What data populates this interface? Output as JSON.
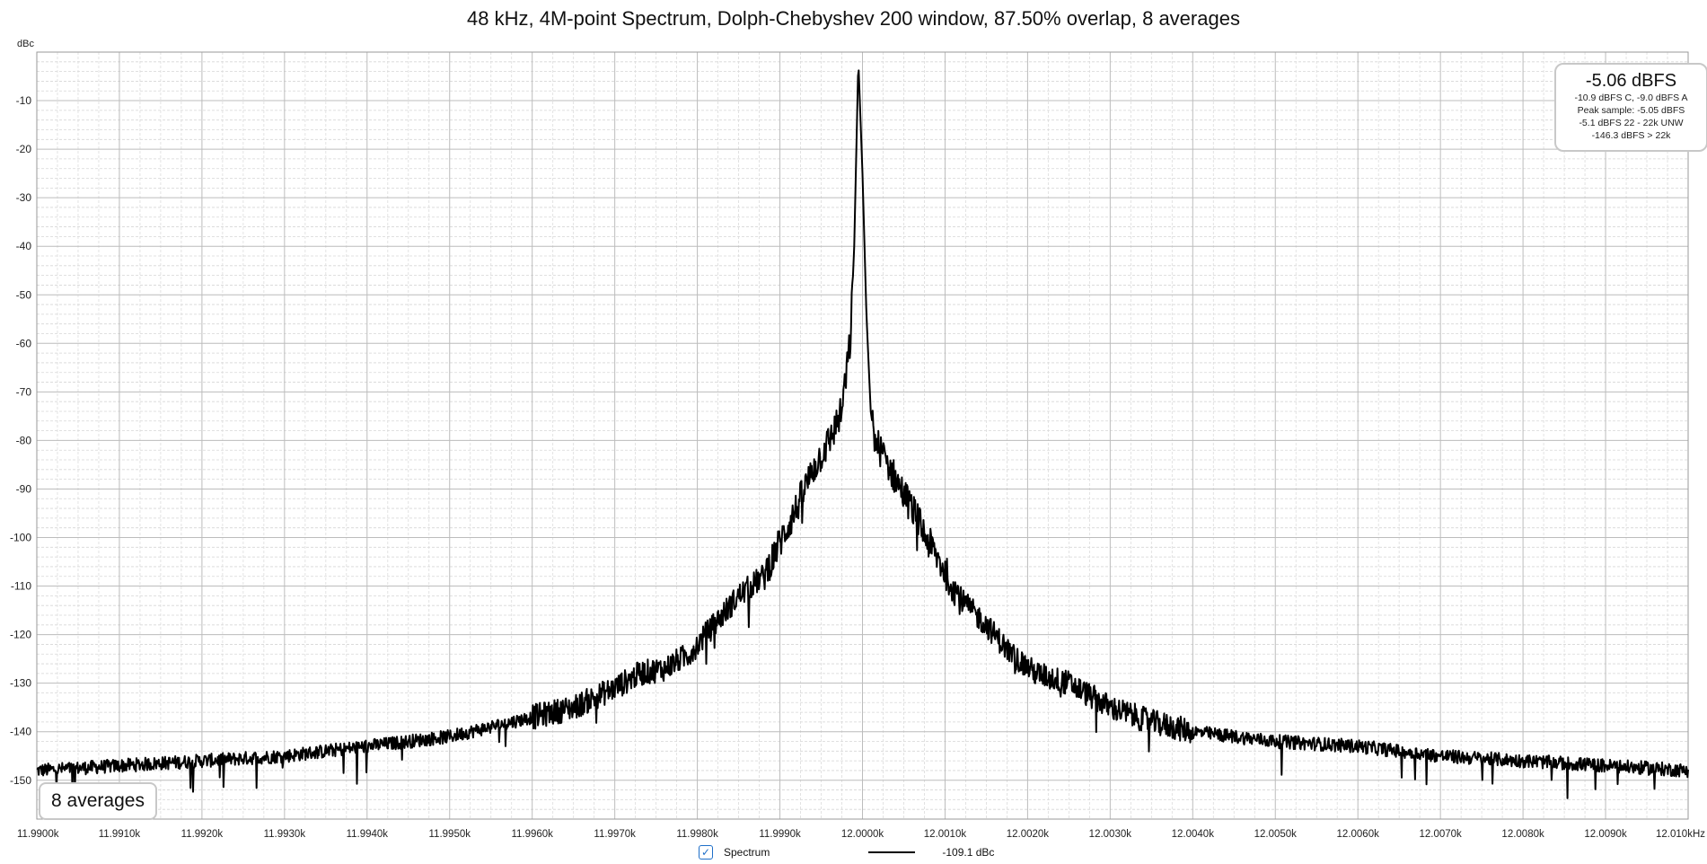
{
  "chart_data": {
    "type": "line",
    "title": "48 kHz, 4M-point Spectrum, Dolph-Chebyshev 200 window, 87.50% overlap, 8 averages",
    "ylabel": "dBc",
    "xlabel": "",
    "ylim": [
      -158,
      0
    ],
    "xlim": [
      11990.0,
      12010.0
    ],
    "yticks": [
      -10,
      -20,
      -30,
      -40,
      -50,
      -60,
      -70,
      -80,
      -90,
      -100,
      -110,
      -120,
      -130,
      -140,
      -150
    ],
    "ytick_labels": [
      "-10",
      "-20",
      "-30",
      "-40",
      "-50",
      "-60",
      "-70",
      "-80",
      "-90",
      "-100",
      "-110",
      "-120",
      "-130",
      "-140",
      "-150"
    ],
    "xtick_labels": [
      "11.9900k",
      "11.9910k",
      "11.9920k",
      "11.9930k",
      "11.9940k",
      "11.9950k",
      "11.9960k",
      "11.9970k",
      "11.9980k",
      "11.9990k",
      "12.0000k",
      "12.0010k",
      "12.0020k",
      "12.0030k",
      "12.0040k",
      "12.0050k",
      "12.0060k",
      "12.0070k",
      "12.0080k",
      "12.0090k",
      "12.010kHz"
    ],
    "grid": true,
    "series": [
      {
        "name": "Spectrum",
        "color": "#000000",
        "x": [
          11990.0,
          11991.0,
          11992.0,
          11993.0,
          11994.0,
          11995.0,
          11995.5,
          11996.0,
          11996.5,
          11997.0,
          11997.3,
          11997.6,
          11997.9,
          11998.2,
          11998.5,
          11998.8,
          11999.0,
          11999.2,
          11999.4,
          11999.6,
          11999.75,
          11999.85,
          11999.9,
          11999.95,
          12000.0,
          12000.05,
          12000.1,
          12000.15,
          12000.25,
          12000.4,
          12000.6,
          12000.8,
          12001.0,
          12001.2,
          12001.5,
          12001.8,
          12002.1,
          12002.5,
          12003.0,
          12003.5,
          12004.0,
          12005.0,
          12006.0,
          12007.0,
          12008.0,
          12009.0,
          12010.0
        ],
        "y": [
          -148,
          -147,
          -146,
          -145,
          -143,
          -141,
          -139,
          -137,
          -135,
          -131,
          -128,
          -127,
          -124,
          -118,
          -112,
          -108,
          -101,
          -94,
          -86,
          -80,
          -74,
          -60,
          -40,
          -2,
          -25,
          -55,
          -74,
          -80,
          -83,
          -88,
          -94,
          -101,
          -107,
          -113,
          -118,
          -124,
          -128,
          -130,
          -135,
          -138,
          -140,
          -142,
          -143,
          -145,
          -146,
          -147,
          -148
        ]
      }
    ],
    "legend": [
      {
        "label": "Spectrum",
        "checked": true,
        "value": "-109.1 dBc"
      }
    ],
    "level_readout": {
      "main": "-5.06 dBFS",
      "lines": [
        "-10.9 dBFS C, -9.0 dBFS A",
        "Peak sample: -5.05 dBFS",
        "-5.1 dBFS 22 - 22k UNW",
        "-146.3 dBFS > 22k"
      ]
    },
    "averages_label": "8 averages"
  }
}
